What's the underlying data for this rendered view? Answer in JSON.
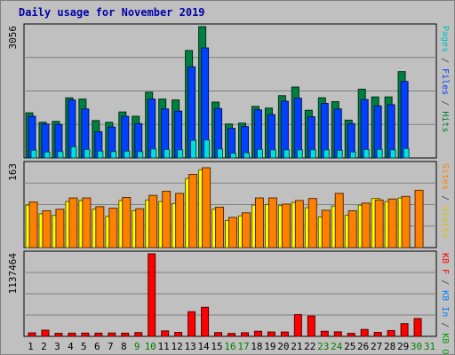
{
  "chart_data": {
    "type": "bar",
    "title": "Daily usage for November 2019",
    "categories": [
      "1",
      "2",
      "3",
      "4",
      "5",
      "6",
      "7",
      "8",
      "9",
      "10",
      "11",
      "12",
      "13",
      "14",
      "15",
      "16",
      "17",
      "18",
      "19",
      "20",
      "21",
      "22",
      "23",
      "24",
      "25",
      "26",
      "27",
      "28",
      "29",
      "30",
      "31"
    ],
    "weekend_categories": [
      "9",
      "10",
      "16",
      "17",
      "23",
      "24",
      "30",
      "31"
    ],
    "category_colors": {
      "weekday": "#000000",
      "weekend": "#008000"
    },
    "panels": [
      {
        "id": "hits-files-pages",
        "ymax_label": "3056",
        "ylim": [
          0,
          3056
        ],
        "series": [
          {
            "name": "Hits",
            "color": "#008040",
            "values": [
              1050,
              830,
              850,
              1400,
              1370,
              870,
              830,
              1070,
              970,
              1530,
              1370,
              1350,
              2500,
              3056,
              1300,
              790,
              810,
              1200,
              1160,
              1450,
              1650,
              1110,
              1400,
              1310,
              880,
              1600,
              1420,
              1420,
              2010,
              0,
              0
            ]
          },
          {
            "name": "Files",
            "color": "#0040ff",
            "values": [
              970,
              790,
              780,
              1350,
              1140,
              610,
              720,
              970,
              800,
              1370,
              1140,
              1090,
              2120,
              2560,
              1150,
              690,
              730,
              1120,
              1010,
              1320,
              1390,
              960,
              1270,
              1140,
              800,
              1360,
              1210,
              1240,
              1780,
              0,
              0
            ]
          },
          {
            "name": "Pages",
            "color": "#00e0e0",
            "values": [
              180,
              140,
              150,
              260,
              200,
              160,
              150,
              160,
              150,
              210,
              200,
              190,
              410,
              420,
              210,
              110,
              120,
              200,
              190,
              190,
              190,
              190,
              190,
              180,
              140,
              200,
              200,
              190,
              220,
              0,
              0
            ]
          }
        ]
      },
      {
        "id": "visits-sites",
        "ymax_label": "163",
        "ylim": [
          0,
          163
        ],
        "series": [
          {
            "name": "Visits",
            "color": "#ffff00",
            "values": [
              83,
              66,
              63,
              90,
              92,
              75,
              61,
              92,
              72,
              93,
              90,
              86,
              135,
              152,
              75,
              53,
              62,
              83,
              84,
              82,
              88,
              78,
              60,
              81,
              63,
              83,
              96,
              90,
              97,
              0,
              0
            ]
          },
          {
            "name": "Sites",
            "color": "#ff8000",
            "values": [
              89,
              72,
              75,
              97,
              97,
              80,
              77,
              98,
              76,
              102,
              110,
              106,
              143,
              156,
              79,
              59,
              68,
              97,
              97,
              85,
              92,
              96,
              73,
              106,
              72,
              87,
              93,
              95,
              100,
              112,
              0
            ]
          }
        ]
      },
      {
        "id": "kbytes",
        "ymax_label": "1137464",
        "ylim": [
          0,
          1137464
        ],
        "series": [
          {
            "name": "KB F",
            "color": "#ff0000",
            "values": [
              48000,
              85000,
              42000,
              44000,
              45000,
              44000,
              46000,
              44000,
              52000,
              1137464,
              75000,
              55000,
              340000,
              400000,
              52000,
              40000,
              50000,
              70000,
              60000,
              60000,
              300000,
              280000,
              70000,
              62000,
              42000,
              95000,
              55000,
              80000,
              175000,
              245000,
              0
            ]
          },
          {
            "name": "KB In",
            "color": "#0080ff",
            "values": []
          },
          {
            "name": "KB Out",
            "color": "#00a000",
            "values": []
          }
        ]
      }
    ],
    "right_labels": [
      {
        "panel": "hits-files-pages",
        "parts": [
          {
            "text": "Pages",
            "color": "#00c0c0"
          },
          {
            "text": " / ",
            "color": "#404040"
          },
          {
            "text": "Files",
            "color": "#0040ff"
          },
          {
            "text": " / ",
            "color": "#404040"
          },
          {
            "text": "Hits",
            "color": "#008040"
          }
        ]
      },
      {
        "panel": "visits-sites",
        "parts": [
          {
            "text": "Sites",
            "color": "#ff8000"
          },
          {
            "text": " / ",
            "color": "#404040"
          },
          {
            "text": "Visits",
            "color": "#e0c000"
          }
        ]
      },
      {
        "panel": "kbytes",
        "parts": [
          {
            "text": "KB F",
            "color": "#ff0000"
          },
          {
            "text": " / ",
            "color": "#404040"
          },
          {
            "text": "KB In",
            "color": "#0080ff"
          },
          {
            "text": " / ",
            "color": "#404040"
          },
          {
            "text": "KB Out",
            "color": "#00a000"
          }
        ]
      }
    ],
    "grid": true,
    "xlabel": "",
    "ylabel": ""
  }
}
